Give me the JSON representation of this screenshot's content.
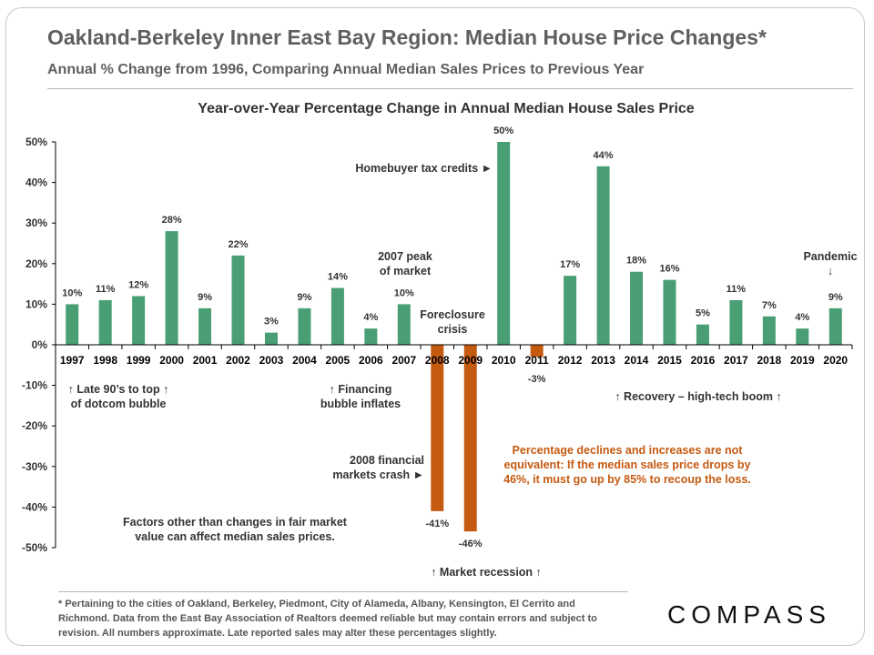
{
  "header": {
    "title": "Oakland-Berkeley Inner East Bay Region: Median House Price Changes*",
    "subtitle": "Annual % Change from 1996, Comparing Annual Median Sales Prices to Previous Year"
  },
  "footnote": "* Pertaining to the cities of Oakland, Berkeley, Piedmont, City of Alameda, Albany, Kensington, El Cerrito and Richmond. Data from the East Bay Association of Realtors deemed reliable but may contain errors and subject to revision. All numbers approximate. Late reported sales may alter these percentages slightly.",
  "brand": "COMPASS",
  "chart_data": {
    "type": "bar",
    "title": "Year-over-Year Percentage Change in Annual Median House Sales Price",
    "xlabel": "",
    "ylabel": "",
    "ylim": [
      -50,
      50
    ],
    "yticks": [
      50,
      40,
      30,
      20,
      10,
      0,
      -10,
      -20,
      -30,
      -40,
      -50
    ],
    "ytick_labels": [
      "50%",
      "40%",
      "30%",
      "20%",
      "10%",
      "0%",
      "-10%",
      "-20%",
      "-30%",
      "-40%",
      "-50%"
    ],
    "grid": false,
    "legend": "none",
    "categories": [
      "1997",
      "1998",
      "1999",
      "2000",
      "2001",
      "2002",
      "2003",
      "2004",
      "2005",
      "2006",
      "2007",
      "2008",
      "2009",
      "2010",
      "2011",
      "2012",
      "2013",
      "2014",
      "2015",
      "2016",
      "2017",
      "2018",
      "2019",
      "2020"
    ],
    "values": [
      10,
      11,
      12,
      28,
      9,
      22,
      3,
      9,
      14,
      4,
      10,
      -41,
      -46,
      50,
      -3,
      17,
      44,
      18,
      16,
      5,
      11,
      7,
      4,
      9
    ],
    "data_labels": [
      "10%",
      "11%",
      "12%",
      "28%",
      "9%",
      "22%",
      "3%",
      "9%",
      "14%",
      "4%",
      "10%",
      "-41%",
      "-46%",
      "50%",
      "-3%",
      "17%",
      "44%",
      "18%",
      "16%",
      "5%",
      "11%",
      "7%",
      "4%",
      "9%"
    ],
    "colors": {
      "positive": "#4a9e74",
      "negative": "#c55a11",
      "axis": "#000000",
      "text": "#333333",
      "note": "#c55a11"
    },
    "annotations": [
      {
        "lines": [
          "↑ Late 90’s to top ↑",
          "of dotcom bubble"
        ]
      },
      {
        "lines": [
          "↑ Financing",
          "bubble inflates"
        ]
      },
      {
        "lines": [
          "2007 peak",
          "of market"
        ]
      },
      {
        "lines": [
          "Foreclosure",
          "crisis"
        ]
      },
      {
        "lines": [
          "Homebuyer tax credits ►"
        ]
      },
      {
        "lines": [
          "Pandemic",
          "↓"
        ]
      },
      {
        "lines": [
          "↑  Recovery – high-tech boom ↑"
        ]
      },
      {
        "lines": [
          "2008 financial",
          "markets crash ►"
        ]
      },
      {
        "lines": [
          "Percentage declines and increases are not",
          "equivalent: If the median sales price drops by",
          "46%, it must go up by 85% to recoup the loss."
        ]
      },
      {
        "lines": [
          "Factors other than changes in fair market",
          "value can affect median sales prices."
        ]
      },
      {
        "lines": [
          "↑  Market recession  ↑"
        ]
      }
    ]
  }
}
